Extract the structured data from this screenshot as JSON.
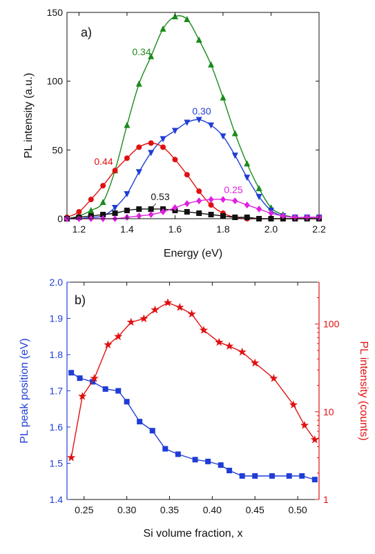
{
  "chart_data": [
    {
      "type": "line",
      "panel_label": "a)",
      "xlabel": "Energy (eV)",
      "ylabel": "PL intensity (a.u.)",
      "xlim": [
        1.15,
        2.2
      ],
      "ylim": [
        0,
        150
      ],
      "xticks": [
        "1.2",
        "1.4",
        "1.6",
        "1.8",
        "2.0",
        "2.2"
      ],
      "xtick_values": [
        1.2,
        1.4,
        1.6,
        1.8,
        2.0,
        2.2
      ],
      "yticks": [
        "0",
        "50",
        "100",
        "150"
      ],
      "ytick_values": [
        0,
        50,
        100,
        150
      ],
      "grid": false,
      "legend": "none",
      "series": [
        {
          "name": "0.34",
          "color": "#1a8a1a",
          "marker": "triangle-up",
          "x": [
            1.15,
            1.2,
            1.25,
            1.3,
            1.35,
            1.4,
            1.45,
            1.5,
            1.55,
            1.6,
            1.65,
            1.7,
            1.75,
            1.8,
            1.85,
            1.9,
            1.95,
            2.0,
            2.05,
            2.1,
            2.15,
            2.2
          ],
          "y": [
            0,
            2,
            6,
            12,
            35,
            68,
            98,
            118,
            138,
            147,
            145,
            130,
            112,
            88,
            62,
            40,
            22,
            8,
            3,
            1,
            1,
            1
          ]
        },
        {
          "name": "0.30",
          "color": "#1f3dd6",
          "marker": "triangle-down",
          "x": [
            1.15,
            1.2,
            1.25,
            1.3,
            1.35,
            1.4,
            1.45,
            1.5,
            1.55,
            1.6,
            1.65,
            1.7,
            1.75,
            1.8,
            1.85,
            1.9,
            1.95,
            2.0,
            2.05,
            2.1,
            2.15,
            2.2
          ],
          "y": [
            0,
            0,
            1,
            2,
            8,
            18,
            34,
            48,
            58,
            64,
            70,
            72,
            68,
            60,
            46,
            30,
            16,
            6,
            2,
            1,
            1,
            1
          ]
        },
        {
          "name": "0.44",
          "color": "#e01010",
          "marker": "circle",
          "x": [
            1.15,
            1.2,
            1.25,
            1.3,
            1.35,
            1.4,
            1.45,
            1.5,
            1.55,
            1.6,
            1.65,
            1.7,
            1.75,
            1.8,
            1.85,
            1.9,
            1.95,
            2.0,
            2.05,
            2.1,
            2.15,
            2.2
          ],
          "y": [
            1,
            5,
            14,
            24,
            35,
            44,
            52,
            55,
            52,
            43,
            32,
            20,
            10,
            4,
            1,
            0,
            0,
            0,
            0,
            0,
            0,
            0
          ]
        },
        {
          "name": "0.53",
          "color": "#111111",
          "marker": "square",
          "x": [
            1.15,
            1.2,
            1.25,
            1.3,
            1.35,
            1.4,
            1.45,
            1.5,
            1.55,
            1.6,
            1.65,
            1.7,
            1.75,
            1.8,
            1.85,
            1.9,
            1.95,
            2.0,
            2.05,
            2.1,
            2.15,
            2.2
          ],
          "y": [
            0,
            1,
            2,
            3,
            4,
            6,
            7,
            7,
            7,
            6,
            5,
            4,
            3,
            2,
            1,
            1,
            0,
            0,
            0,
            0,
            0,
            0
          ]
        },
        {
          "name": "0.25",
          "color": "#e020e0",
          "marker": "diamond",
          "x": [
            1.15,
            1.2,
            1.25,
            1.3,
            1.35,
            1.4,
            1.45,
            1.5,
            1.55,
            1.6,
            1.65,
            1.7,
            1.75,
            1.8,
            1.85,
            1.9,
            1.95,
            2.0,
            2.05,
            2.1,
            2.15,
            2.2
          ],
          "y": [
            0,
            0,
            0,
            0,
            0,
            1,
            2,
            3,
            5,
            8,
            11,
            13,
            14,
            14,
            13,
            10,
            7,
            4,
            2,
            1,
            1,
            1
          ]
        }
      ]
    },
    {
      "type": "line",
      "panel_label": "b)",
      "xlabel": "Si volume fraction, x",
      "xlim": [
        0.23,
        0.525
      ],
      "xticks": [
        "0.25",
        "0.30",
        "0.35",
        "0.40",
        "0.45",
        "0.50"
      ],
      "xtick_values": [
        0.25,
        0.3,
        0.35,
        0.4,
        0.45,
        0.5
      ],
      "y_left": {
        "label": "PL peak position (eV)",
        "color": "#1f3dd6",
        "lim": [
          1.4,
          2.0
        ],
        "ticks": [
          "1.4",
          "1.5",
          "1.6",
          "1.7",
          "1.8",
          "1.9",
          "2.0"
        ],
        "tick_values": [
          1.4,
          1.5,
          1.6,
          1.7,
          1.8,
          1.9,
          2.0
        ]
      },
      "y_right": {
        "label": "PL intensity (counts)",
        "color": "#e01010",
        "scale": "log",
        "lim": [
          1,
          300
        ],
        "ticks": [
          "1",
          "10",
          "100"
        ],
        "tick_values": [
          1,
          10,
          100
        ]
      },
      "grid": false,
      "legend": "none",
      "series": [
        {
          "axis": "left",
          "color": "#1f3dd6",
          "marker": "square",
          "x": [
            0.235,
            0.245,
            0.26,
            0.275,
            0.29,
            0.3,
            0.315,
            0.33,
            0.345,
            0.36,
            0.38,
            0.395,
            0.41,
            0.42,
            0.435,
            0.45,
            0.47,
            0.49,
            0.505,
            0.52
          ],
          "y": [
            1.75,
            1.735,
            1.725,
            1.705,
            1.7,
            1.67,
            1.615,
            1.59,
            1.54,
            1.525,
            1.51,
            1.505,
            1.495,
            1.48,
            1.465,
            1.465,
            1.465,
            1.465,
            1.465,
            1.455
          ]
        },
        {
          "axis": "right",
          "color": "#e01010",
          "marker": "star",
          "x": [
            0.235,
            0.248,
            0.262,
            0.278,
            0.29,
            0.305,
            0.32,
            0.333,
            0.348,
            0.362,
            0.376,
            0.39,
            0.408,
            0.42,
            0.435,
            0.45,
            0.472,
            0.495,
            0.508,
            0.52
          ],
          "y": [
            3,
            15,
            24,
            58,
            72,
            105,
            115,
            145,
            175,
            155,
            130,
            85,
            62,
            56,
            48,
            36,
            24,
            12,
            7,
            4.8
          ]
        }
      ]
    }
  ]
}
